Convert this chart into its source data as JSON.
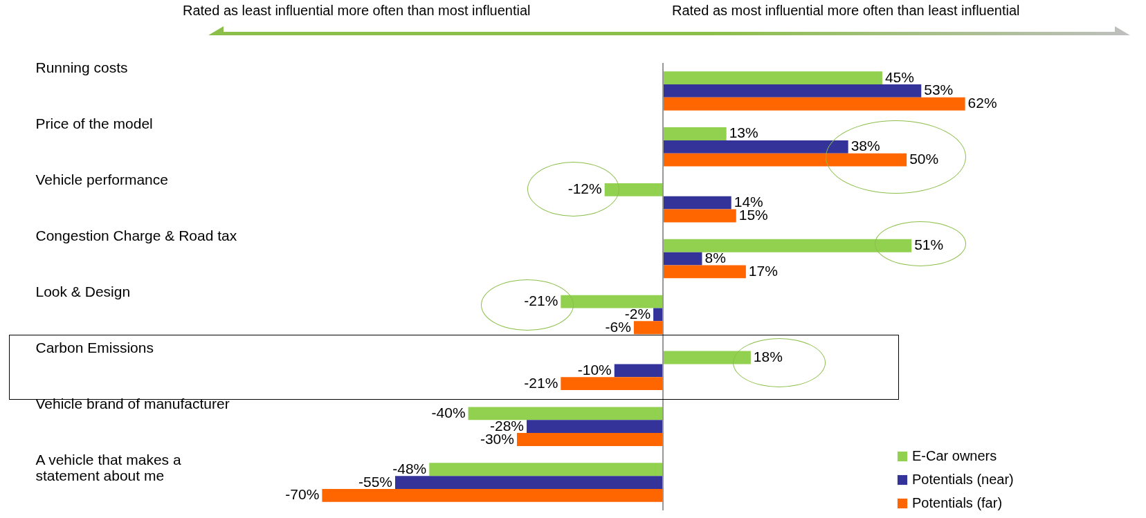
{
  "chart_data": {
    "type": "bar",
    "orientation": "horizontal",
    "legend": "bottom right",
    "categories": [
      "Running costs",
      "Price of the model",
      "Vehicle performance",
      "Congestion Charge & Road tax",
      "Look & Design",
      "Carbon Emissions",
      "Vehicle brand of manufacturer",
      "A vehicle that makes a statement about me"
    ],
    "series": [
      {
        "name": "E-Car owners",
        "color": "#92d050",
        "values": [
          45,
          13,
          -12,
          51,
          -21,
          18,
          -40,
          -48
        ],
        "value_labels": [
          "45%",
          "13%",
          "-12%",
          "51%",
          "-21%",
          "18%",
          "-40%",
          "-48%"
        ]
      },
      {
        "name": "Potentials (near)",
        "color": "#333399",
        "values": [
          53,
          38,
          14,
          8,
          -2,
          -10,
          -28,
          -55
        ],
        "value_labels": [
          "53%",
          "38%",
          "14%",
          "8%",
          "-2%",
          "-10%",
          "-28%",
          "-55%"
        ]
      },
      {
        "name": "Potentials (far)",
        "color": "#ff6600",
        "values": [
          62,
          50,
          15,
          17,
          -6,
          -21,
          -30,
          -70
        ],
        "value_labels": [
          "62%",
          "50%",
          "15%",
          "17%",
          "-6%",
          "-21%",
          "-30%",
          "-70%"
        ]
      }
    ],
    "annotations": [
      "Rated as least influential more often than most influential",
      "Rated as most influential more often than least influential"
    ]
  }
}
